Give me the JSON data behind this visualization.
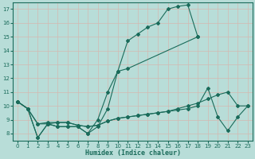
{
  "xlabel": "Humidex (Indice chaleur)",
  "bg_color": "#b8ddd8",
  "grid_color": "#d4ede8",
  "line_color": "#1a6b5a",
  "xlim": [
    -0.5,
    23.5
  ],
  "ylim": [
    7.5,
    17.5
  ],
  "xticks": [
    0,
    1,
    2,
    3,
    4,
    5,
    6,
    7,
    8,
    9,
    10,
    11,
    12,
    13,
    14,
    15,
    16,
    17,
    18,
    19,
    20,
    21,
    22,
    23
  ],
  "yticks": [
    8,
    9,
    10,
    11,
    12,
    13,
    14,
    15,
    16,
    17
  ],
  "line1_x": [
    0,
    1,
    2,
    3,
    4,
    5,
    6,
    7,
    8,
    9,
    10,
    11,
    12,
    13,
    14,
    15,
    16,
    17,
    18
  ],
  "line1_y": [
    10.3,
    9.8,
    7.7,
    8.7,
    8.5,
    8.5,
    8.5,
    8.0,
    8.5,
    9.8,
    12.5,
    14.7,
    15.2,
    15.7,
    16.0,
    17.0,
    17.2,
    17.3,
    15.0
  ],
  "line2_x": [
    0,
    1,
    2,
    3,
    4,
    5,
    6,
    7,
    8,
    9,
    10,
    11,
    18
  ],
  "line2_y": [
    10.3,
    9.8,
    7.7,
    8.7,
    8.5,
    8.5,
    8.5,
    8.0,
    9.0,
    11.0,
    12.5,
    12.7,
    15.0
  ],
  "line3_x": [
    0,
    1,
    2,
    3,
    4,
    5,
    6,
    7,
    8,
    9,
    10,
    11,
    12,
    13,
    14,
    15,
    16,
    17,
    18,
    19,
    20,
    21,
    22,
    23
  ],
  "line3_y": [
    10.3,
    9.8,
    8.7,
    8.7,
    8.8,
    8.8,
    8.6,
    8.5,
    8.6,
    8.9,
    9.1,
    9.2,
    9.3,
    9.4,
    9.5,
    9.6,
    9.7,
    9.8,
    10.0,
    11.3,
    9.2,
    8.2,
    9.2,
    10.0
  ],
  "line4_x": [
    0,
    1,
    2,
    3,
    4,
    5,
    6,
    7,
    8,
    9,
    10,
    11,
    12,
    13,
    14,
    15,
    16,
    17,
    18,
    19,
    20,
    21,
    22,
    23
  ],
  "line4_y": [
    10.3,
    9.8,
    8.7,
    8.8,
    8.8,
    8.8,
    8.6,
    8.5,
    8.6,
    8.9,
    9.1,
    9.2,
    9.3,
    9.4,
    9.5,
    9.6,
    9.8,
    10.0,
    10.2,
    10.5,
    10.8,
    11.0,
    10.0,
    10.0
  ]
}
